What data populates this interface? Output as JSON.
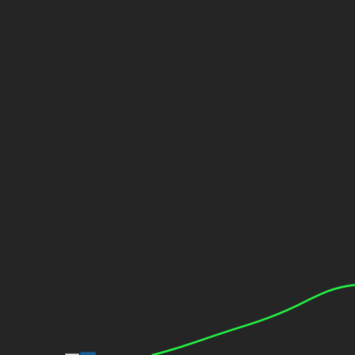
{
  "canvas": {
    "background": "#252525"
  },
  "curve": {
    "color": "#22ee44"
  },
  "node": {
    "color": "#1a5d96"
  }
}
